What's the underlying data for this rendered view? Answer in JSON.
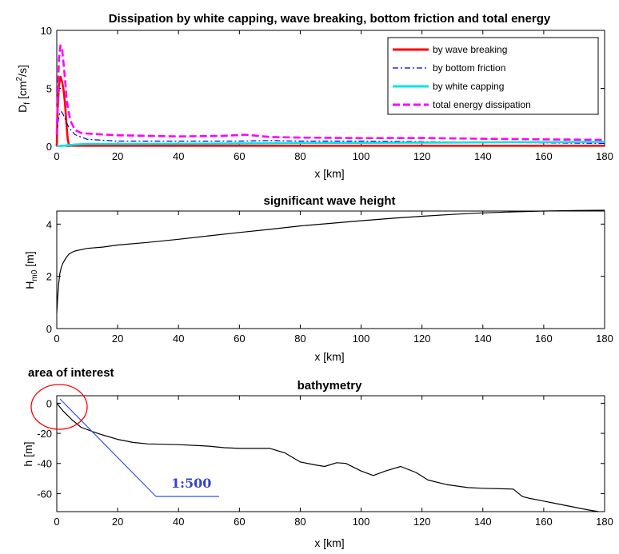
{
  "chart_data": [
    {
      "type": "line",
      "title": "Dissipation by white capping, wave breaking, bottom friction and total energy",
      "xlabel": "x [km]",
      "ylabel_parts": [
        "D",
        "f",
        " [cm",
        "2",
        "/s]"
      ],
      "xlim": [
        0,
        180
      ],
      "ylim": [
        0,
        10
      ],
      "xticks": [
        0,
        20,
        40,
        60,
        80,
        100,
        120,
        140,
        160,
        180
      ],
      "yticks": [
        0,
        5,
        10
      ],
      "legend_position": "top-right",
      "series": [
        {
          "name": "by wave breaking",
          "color": "#ff0000",
          "style": "solid",
          "x": [
            0,
            0.3,
            0.7,
            1.2,
            1.7,
            2.2,
            2.7,
            3.2,
            3.6,
            4.0,
            5,
            180
          ],
          "y": [
            0,
            3.2,
            5.3,
            6.0,
            5.6,
            4.9,
            3.7,
            1.8,
            0.6,
            0.1,
            0.05,
            0.05
          ]
        },
        {
          "name": "by bottom friction",
          "color": "#0000cc",
          "style": "dashdot",
          "x": [
            0,
            0.5,
            1,
            1.5,
            2,
            3,
            4,
            6,
            10,
            20,
            40,
            60,
            70,
            80,
            100,
            120,
            140,
            160,
            180
          ],
          "y": [
            1.0,
            2.3,
            2.9,
            3.0,
            2.8,
            2.2,
            1.6,
            1.0,
            0.6,
            0.45,
            0.45,
            0.45,
            0.5,
            0.45,
            0.45,
            0.4,
            0.35,
            0.3,
            0.25
          ]
        },
        {
          "name": "by white capping",
          "color": "#00e5e5",
          "style": "solid",
          "x": [
            0,
            1,
            2,
            4,
            6,
            10,
            20,
            40,
            60,
            80,
            100,
            120,
            140,
            160,
            180
          ],
          "y": [
            0.0,
            0.02,
            0.05,
            0.1,
            0.15,
            0.2,
            0.2,
            0.22,
            0.25,
            0.28,
            0.3,
            0.32,
            0.34,
            0.36,
            0.38
          ]
        },
        {
          "name": "total energy dissipation",
          "color": "#ff00ff",
          "style": "dashed",
          "x": [
            0,
            0.3,
            0.7,
            1.2,
            1.7,
            2.2,
            2.7,
            3.2,
            3.7,
            4.5,
            6,
            8,
            10,
            20,
            40,
            55,
            62,
            70,
            80,
            100,
            120,
            140,
            160,
            180
          ],
          "y": [
            1.0,
            4.0,
            7.5,
            8.7,
            8.5,
            7.2,
            5.8,
            4.2,
            3.2,
            2.2,
            1.4,
            1.15,
            1.1,
            0.95,
            0.85,
            0.9,
            1.0,
            0.8,
            0.75,
            0.7,
            0.72,
            0.65,
            0.6,
            0.55
          ]
        }
      ]
    },
    {
      "type": "line",
      "title": "significant wave height",
      "xlabel": "x [km]",
      "ylabel_parts": [
        "H",
        "m0",
        " [m]"
      ],
      "xlim": [
        0,
        180
      ],
      "ylim": [
        0,
        4.5
      ],
      "xticks": [
        0,
        20,
        40,
        60,
        80,
        100,
        120,
        140,
        160,
        180
      ],
      "yticks": [
        0,
        2,
        4
      ],
      "series": [
        {
          "color": "#000000",
          "style": "solid",
          "x": [
            0,
            0.3,
            0.6,
            1,
            1.5,
            2,
            3,
            4,
            5,
            6,
            8,
            10,
            15,
            20,
            30,
            40,
            50,
            60,
            70,
            80,
            90,
            100,
            110,
            120,
            130,
            140,
            150,
            160,
            170,
            180
          ],
          "y": [
            0.6,
            1.2,
            1.7,
            2.1,
            2.35,
            2.5,
            2.7,
            2.85,
            2.92,
            2.97,
            3.02,
            3.07,
            3.12,
            3.2,
            3.3,
            3.42,
            3.55,
            3.68,
            3.8,
            3.93,
            4.03,
            4.13,
            4.22,
            4.3,
            4.37,
            4.43,
            4.47,
            4.5,
            4.52,
            4.53
          ]
        }
      ]
    },
    {
      "type": "line",
      "title": "bathymetry",
      "xlabel": "x [km]",
      "ylabel": "h [m]",
      "xlim": [
        0,
        180
      ],
      "ylim": [
        -72,
        5
      ],
      "xticks": [
        0,
        20,
        40,
        60,
        80,
        100,
        120,
        140,
        160,
        180
      ],
      "yticks": [
        0,
        -20,
        -40,
        -60
      ],
      "annotations": {
        "area_label": "area of interest",
        "slope_label": "1:500",
        "slope_line_color": "#3355dd",
        "circle_color": "#ff0000"
      },
      "series": [
        {
          "color": "#000000",
          "style": "solid",
          "x": [
            0,
            2,
            5,
            8,
            12,
            15,
            20,
            25,
            30,
            40,
            50,
            55,
            60,
            70,
            75,
            80,
            85,
            88,
            92,
            95,
            100,
            104,
            108,
            113,
            118,
            122,
            128,
            135,
            140,
            150,
            153,
            155,
            160,
            165,
            170,
            175,
            178
          ],
          "y": [
            0,
            -5,
            -11,
            -16,
            -19,
            -21,
            -24,
            -26,
            -27,
            -27.5,
            -28.5,
            -29.5,
            -30,
            -30,
            -33,
            -39,
            -41,
            -42,
            -39.5,
            -40,
            -45,
            -48,
            -45,
            -42,
            -46,
            -51,
            -54,
            -56,
            -56.5,
            -57,
            -62,
            -63,
            -65,
            -67,
            -69,
            -71,
            -72
          ]
        }
      ]
    }
  ]
}
